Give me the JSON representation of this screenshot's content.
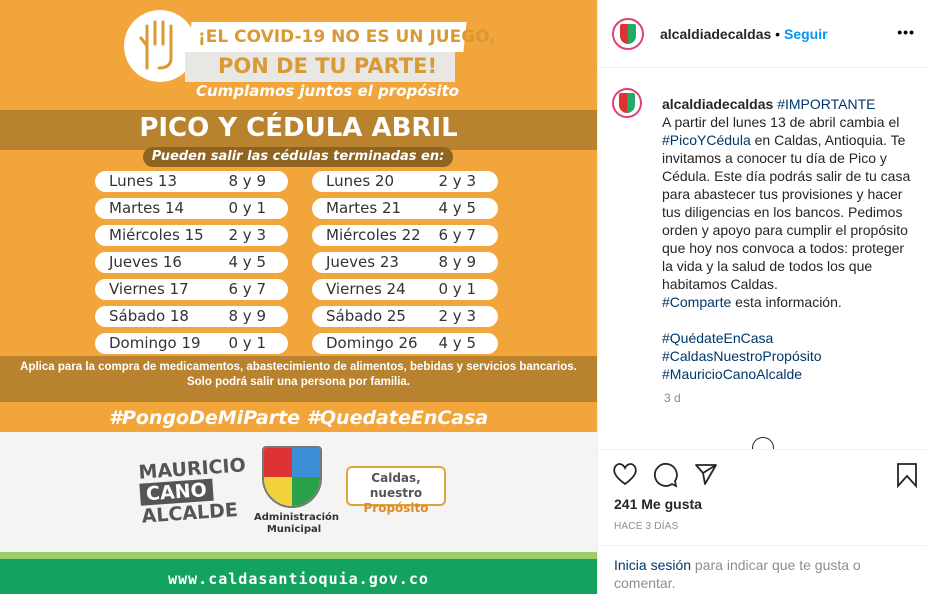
{
  "post_image": {
    "headline1": "¡EL COVID-19 NO ES UN JUEGO,",
    "headline2": "PON DE TU PARTE!",
    "tagline": "Cumplamos juntos el propósito",
    "title": "PICO Y CÉDULA ABRIL",
    "subtitle": "Pueden salir las cédulas terminadas en:",
    "schedule_left": [
      {
        "day": "Lunes 13",
        "digits": "8 y 9"
      },
      {
        "day": "Martes 14",
        "digits": "0 y 1"
      },
      {
        "day": "Miércoles 15",
        "digits": "2 y 3"
      },
      {
        "day": "Jueves 16",
        "digits": "4 y 5"
      },
      {
        "day": "Viernes 17",
        "digits": "6 y 7"
      },
      {
        "day": "Sábado 18",
        "digits": "8 y 9"
      },
      {
        "day": "Domingo 19",
        "digits": "0 y 1"
      }
    ],
    "schedule_right": [
      {
        "day": "Lunes 20",
        "digits": "2 y 3"
      },
      {
        "day": "Martes 21",
        "digits": "4 y 5"
      },
      {
        "day": "Miércoles 22",
        "digits": "6 y 7"
      },
      {
        "day": "Jueves 23",
        "digits": "8 y 9"
      },
      {
        "day": "Viernes 24",
        "digits": "0 y 1"
      },
      {
        "day": "Sábado 25",
        "digits": "2 y 3"
      },
      {
        "day": "Domingo 26",
        "digits": "4 y 5"
      }
    ],
    "note1": "Aplica para la compra de medicamentos, abastecimiento de alimentos, bebidas  y servicios bancarios.",
    "note2": "Solo podrá salir una persona por familia.",
    "hashtags": "#PongoDeMiParte  #QuedateEnCasa",
    "logo_mauricio": [
      "MAURICIO",
      "CANO",
      "ALCALDE"
    ],
    "logo_admin": [
      "Administración",
      "Municipal"
    ],
    "logo_caldas": [
      "Caldas, nuestro",
      "Propósito"
    ],
    "website": "www.caldasantioquia.gov.co",
    "colors": {
      "orange": "#f1a53a",
      "brown": "#b8822e",
      "green": "#13a35f"
    }
  },
  "header": {
    "username": "alcaldiadecaldas",
    "separator": " • ",
    "follow": "Seguir",
    "more_icon": "ellipsis-icon"
  },
  "caption": {
    "username": "alcaldiadecaldas",
    "tag_important": "#IMPORTANTE",
    "text1": "A partir del lunes 13 de abril cambia el ",
    "tag_pico": "#PicoYCédula",
    "text2": " en Caldas, Antioquia. Te invitamos a conocer tu día de Pico y Cédula. Este día podrás salir de tu casa para abastecer tus provisiones y hacer tus diligencias en los bancos. Pedimos orden y apoyo para cumplir el propósito que hoy nos convoca a todos: proteger la vida y la salud de todos los que habitamos Caldas.\n",
    "tag_comparte": "#Comparte",
    "text3": " esta información.\n\n",
    "tag1": "#QuédateEnCasa",
    "tag2": "#CaldasNuestroPropósito",
    "tag3": "#MauricioCanoAlcalde",
    "age": "3 d"
  },
  "actions": {
    "likes": "241 Me gusta",
    "date": "HACE 3 DÍAS"
  },
  "login": {
    "link": "Inicia sesión",
    "text": " para indicar que te gusta o comentar."
  }
}
